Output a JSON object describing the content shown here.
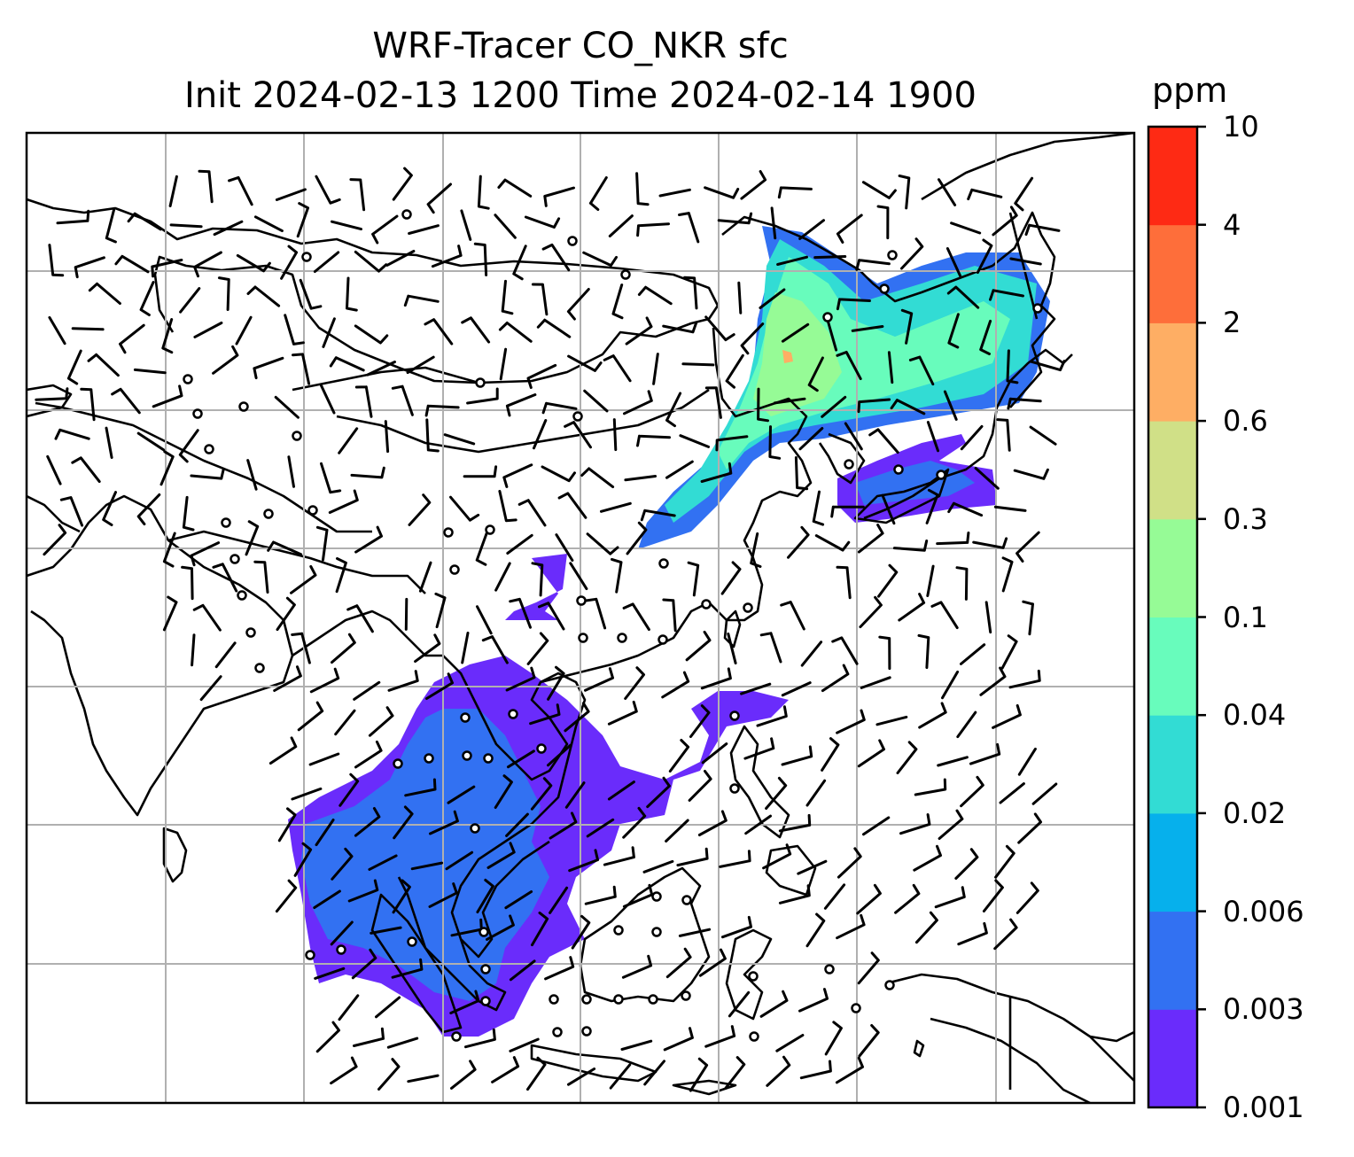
{
  "title": {
    "line1": "WRF-Tracer CO_NKR sfc",
    "line2": "Init 2024-02-13 1200 Time 2024-02-14 1900"
  },
  "colorbar": {
    "unit": "ppm",
    "levels": [
      "0.001",
      "0.003",
      "0.006",
      "0.02",
      "0.04",
      "0.1",
      "0.3",
      "0.6",
      "2",
      "4",
      "10"
    ],
    "colors": [
      "#6a2cfb",
      "#3271f2",
      "#06b0ec",
      "#32dcd4",
      "#68fcbc",
      "#96fb96",
      "#d0e087",
      "#feae64",
      "#fe6e3a",
      "#fe2a14"
    ]
  },
  "map": {
    "grid": "on",
    "coastline_color": "#000000",
    "grid_color": "#b0b0b0",
    "wind_symbols": "wind barbs (calm = open circle)"
  }
}
